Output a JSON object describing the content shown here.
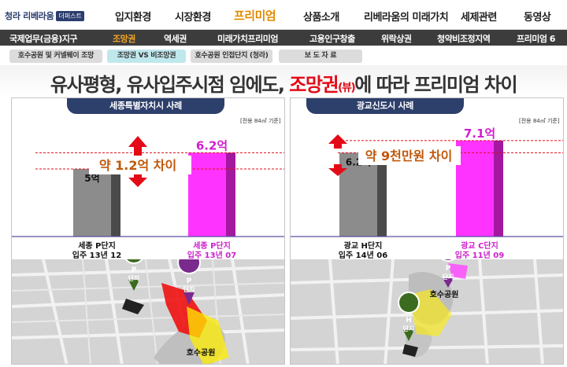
{
  "logo": {
    "text": "청라 리베라움",
    "badge": "더퍼스트"
  },
  "nav": [
    {
      "label": "입지환경",
      "active": false
    },
    {
      "label": "시장환경",
      "active": false
    },
    {
      "label": "프리미엄",
      "active": true
    },
    {
      "label": "상품소개",
      "active": false
    },
    {
      "label": "리베라움의 미래가치",
      "active": false
    },
    {
      "label": "세제관련",
      "active": false
    },
    {
      "label": "동영상",
      "active": false
    }
  ],
  "subnav": [
    {
      "label": "국제업무(금융)지구",
      "active": false
    },
    {
      "label": "조망권",
      "active": true
    },
    {
      "label": "역세권",
      "active": false
    },
    {
      "label": "미래가치프리미엄",
      "active": false
    },
    {
      "label": "고용인구창출",
      "active": false
    },
    {
      "label": "위락상권",
      "active": false
    },
    {
      "label": "청약비조정지역",
      "active": false
    },
    {
      "label": "프리미엄 6",
      "active": false
    }
  ],
  "pills": [
    {
      "label": "호수공원 및 커넬웨이 조망",
      "active": false
    },
    {
      "label": "조망권 VS 비조망권",
      "active": true
    },
    {
      "label": "호수공원 인접단지 (청라)",
      "active": false
    },
    {
      "label": "보 도 자 료",
      "active": false
    }
  ],
  "headline": {
    "part1": "유사평형, 유사입주시점 임에도, ",
    "highlight": "조망권",
    "small": "(뷰)",
    "part2": "에 따라 프리미엄 차이"
  },
  "colors": {
    "navy": "#2d3f6b",
    "accent_orange": "#e08a00",
    "magenta": "#ff33ff",
    "gray_bar": "#8c8c8c",
    "red": "#e30b17",
    "diff_text": "#c0580a"
  },
  "panels": [
    {
      "title": "세종특별자치시 사례",
      "unit_note": "[전용 84㎡ 기준]",
      "diff_label": "약 1.2억 차이",
      "chart_data": {
        "type": "bar",
        "categories": [
          "세종 P단지",
          "세종 P단지"
        ],
        "values": [
          5,
          6.2
        ],
        "value_labels": [
          "5억",
          "6.2억"
        ],
        "sub_labels": [
          "입주 13년 12",
          "입주 13년 07"
        ],
        "bar_colors": [
          "gray",
          "magenta"
        ],
        "ylim": [
          0,
          8
        ]
      },
      "map": {
        "marker_left": {
          "letter": "P",
          "label": "단지"
        },
        "marker_right": {
          "letter": "P",
          "label": "단지"
        },
        "lake_label": "호수공원"
      }
    },
    {
      "title": "광교신도시 사례",
      "unit_note": "[전용 84㎡ 기준]",
      "diff_label": "약 9천만원 차이",
      "chart_data": {
        "type": "bar",
        "categories": [
          "광교 H단지",
          "광교 C단지"
        ],
        "values": [
          6.2,
          7.1
        ],
        "value_labels": [
          "6.2억",
          "7.1억"
        ],
        "sub_labels": [
          "입주 14년 06",
          "입주 11년 09"
        ],
        "bar_colors": [
          "gray",
          "magenta"
        ],
        "ylim": [
          0,
          8
        ]
      },
      "map": {
        "marker_top": {
          "letter": "P",
          "label": "단지"
        },
        "marker_bottom": {
          "letter": "H",
          "label": "단지"
        },
        "lake_label": "호수공원"
      }
    }
  ]
}
